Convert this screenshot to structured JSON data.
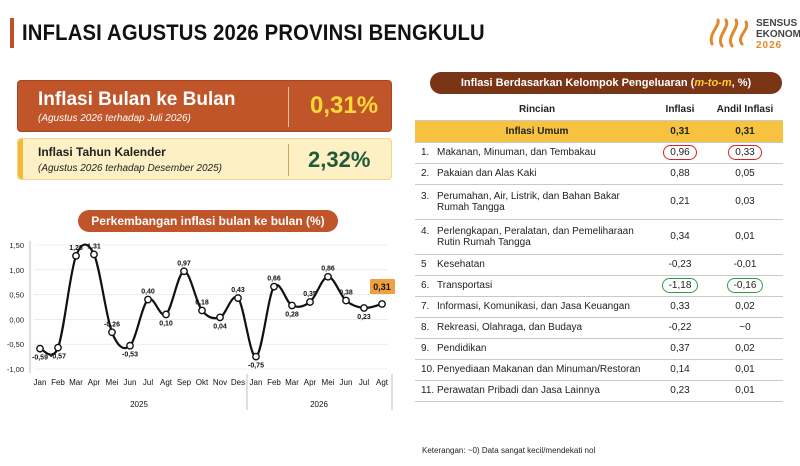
{
  "header": {
    "title": "INFLASI AGUSTUS 2026 PROVINSI BENGKULU",
    "logo": {
      "line1": "SENSUS",
      "line2": "EKONOMI",
      "line3": "2026"
    }
  },
  "colors": {
    "accent": "#c0552a",
    "dark_accent": "#7a3416",
    "highlight": "#f7c240",
    "value_yellow": "#ffd83a",
    "value_green": "#1f5a3a"
  },
  "mtm": {
    "title": "Inflasi Bulan ke Bulan",
    "subtitle": "(Agustus 2026 terhadap Juli 2026)",
    "value": "0,31%"
  },
  "ytd": {
    "title": "Inflasi Tahun Kalender",
    "subtitle": "(Agustus 2026 terhadap Desember 2025)",
    "value": "2,32%"
  },
  "chart_title": "Perkembangan inflasi bulan ke bulan (%)",
  "chart_data": {
    "type": "line",
    "title": "Perkembangan inflasi bulan ke bulan (%)",
    "categories": [
      "Jan",
      "Feb",
      "Mar",
      "Apr",
      "Mei",
      "Jun",
      "Jul",
      "Agt",
      "Sep",
      "Okt",
      "Nov",
      "Des",
      "Jan",
      "Feb",
      "Mar",
      "Apr",
      "Mei",
      "Jun",
      "Jul",
      "Agt"
    ],
    "years": [
      {
        "label": "2025",
        "from": 0,
        "to": 11
      },
      {
        "label": "2026",
        "from": 12,
        "to": 19
      }
    ],
    "values": [
      -0.59,
      -0.57,
      1.28,
      1.31,
      -0.26,
      -0.53,
      0.4,
      0.1,
      0.97,
      0.18,
      0.04,
      0.43,
      -0.75,
      0.66,
      0.28,
      0.35,
      0.86,
      0.38,
      0.23,
      0.31
    ],
    "labels": [
      "-0,59",
      "-0,57",
      "1,28",
      "1,31",
      "-0,26",
      "-0,53",
      "0,40",
      "0,10",
      "0,97",
      "0,18",
      "0,04",
      "0,43",
      "-0,75",
      "0,66",
      "0,28",
      "0,35",
      "0,86",
      "0,38",
      "0,23",
      "0,31"
    ],
    "yticks": [
      -1.0,
      -0.5,
      0.0,
      0.5,
      1.0,
      1.5
    ],
    "ytick_labels": [
      "-1,00",
      "-0,50",
      "0,00",
      "0,50",
      "1,00",
      "1,50"
    ],
    "ylim": [
      -1.0,
      1.5
    ],
    "highlight_last": true
  },
  "table": {
    "title_prefix": "Inflasi Berdasarkan Kelompok Pengeluaran (",
    "title_mtm": "m-to-m",
    "title_suffix": ", %)",
    "headers": {
      "rincian": "Rincian",
      "inflasi": "Inflasi",
      "andil": "Andil Inflasi"
    },
    "umum": {
      "name": "Inflasi Umum",
      "inflasi": "0,31",
      "andil": "0,31"
    },
    "rows": [
      {
        "no": "1.",
        "name": "Makanan, Minuman, dan Tembakau",
        "inflasi": "0,96",
        "andil": "0,33",
        "mark": "red"
      },
      {
        "no": "2.",
        "name": "Pakaian dan Alas Kaki",
        "inflasi": "0,88",
        "andil": "0,05",
        "mark": ""
      },
      {
        "no": "3.",
        "name": "Perumahan, Air, Listrik, dan Bahan Bakar Rumah Tangga",
        "inflasi": "0,21",
        "andil": "0,03",
        "mark": ""
      },
      {
        "no": "4.",
        "name": "Perlengkapan, Peralatan, dan Pemeliharaan Rutin Rumah Tangga",
        "inflasi": "0,34",
        "andil": "0,01",
        "mark": ""
      },
      {
        "no": "5",
        "name": "Kesehatan",
        "inflasi": "-0,23",
        "andil": "-0,01",
        "mark": ""
      },
      {
        "no": "6.",
        "name": "Transportasi",
        "inflasi": "-1,18",
        "andil": "-0,16",
        "mark": "green"
      },
      {
        "no": "7.",
        "name": "Informasi, Komunikasi, dan Jasa Keuangan",
        "inflasi": "0,33",
        "andil": "0,02",
        "mark": ""
      },
      {
        "no": "8.",
        "name": "Rekreasi, Olahraga, dan Budaya",
        "inflasi": "-0,22",
        "andil": "~0",
        "mark": ""
      },
      {
        "no": "9.",
        "name": "Pendidikan",
        "inflasi": "0,37",
        "andil": "0,02",
        "mark": ""
      },
      {
        "no": "10.",
        "name": "Penyediaan Makanan dan Minuman/Restoran",
        "inflasi": "0,14",
        "andil": "0,01",
        "mark": ""
      },
      {
        "no": "11.",
        "name": "Perawatan Pribadi dan Jasa Lainnya",
        "inflasi": "0,23",
        "andil": "0,01",
        "mark": ""
      }
    ],
    "note": "Keterangan: ~0) Data sangat kecil/mendekati nol"
  }
}
